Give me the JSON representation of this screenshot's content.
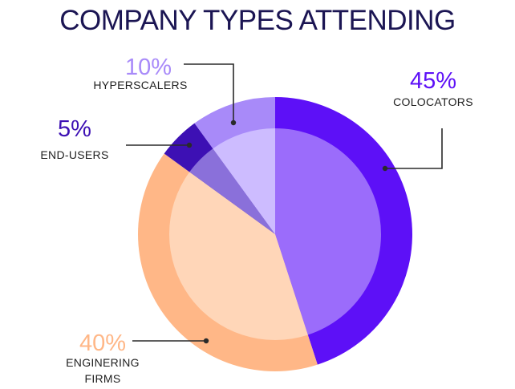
{
  "chart_data": {
    "type": "pie",
    "title": "COMPANY TYPES ATTENDING",
    "slices": [
      {
        "name": "COLOCATORS",
        "value": 45,
        "percent_label": "45%",
        "label_lines": [
          "COLOCATORS"
        ],
        "outer_color": "#5d10f7",
        "inner_color": "#9b6cfb",
        "text_color": "#5d10f7"
      },
      {
        "name": "ENGINERING FIRMS",
        "value": 40,
        "percent_label": "40%",
        "label_lines": [
          "ENGINERING",
          "FIRMS"
        ],
        "outer_color": "#ffb787",
        "inner_color": "#ffd6b8",
        "text_color": "#ffb787"
      },
      {
        "name": "END-USERS",
        "value": 5,
        "percent_label": "5%",
        "label_lines": [
          "END-USERS"
        ],
        "outer_color": "#3d10b4",
        "inner_color": "#8a70da",
        "text_color": "#3d10b4"
      },
      {
        "name": "HYPERSCALERS",
        "value": 10,
        "percent_label": "10%",
        "label_lines": [
          "HYPERSCALERS"
        ],
        "outer_color": "#a88af9",
        "inner_color": "#cdbcff",
        "text_color": "#a88af9"
      }
    ]
  }
}
